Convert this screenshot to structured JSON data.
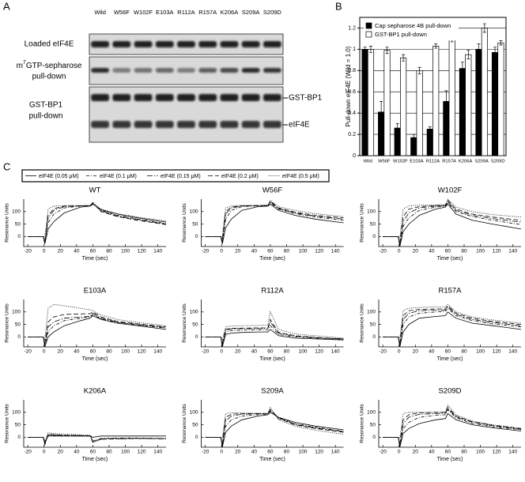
{
  "panel_labels": [
    "A",
    "B",
    "C"
  ],
  "gel": {
    "lanes": [
      "Wild",
      "W56F",
      "W102F",
      "E103A",
      "R112A",
      "R157A",
      "K206A",
      "S209A",
      "S209D"
    ],
    "row_labels": {
      "loaded": "Loaded eIF4E",
      "cap_prefix": "m",
      "cap_sup": "7",
      "cap_rest": "GTP-sepharose",
      "cap_line2": "pull-down",
      "gst_line1": "GST-BP1",
      "gst_line2": "pull-down"
    },
    "band_labels": [
      "GST-BP1",
      "eIF4E"
    ]
  },
  "spr_legend": [
    {
      "name": "eIF4E (0.05 μM)",
      "style": "solid"
    },
    {
      "name": "eIF4E (0.1 μM)",
      "style": "dash-dot"
    },
    {
      "name": "eIF4E (0.15 μM)",
      "style": "long-dash-dot"
    },
    {
      "name": "eIF4E (0.2 μM)",
      "style": "dashed"
    },
    {
      "name": "eIF4E (0.5 μM)",
      "style": "dotted"
    }
  ],
  "chart_data": [
    {
      "type": "bar",
      "y_label": "Pull-down eIF4E (Wild = 1.0)",
      "categories": [
        "Wild",
        "W56F",
        "W102F",
        "E103A",
        "R112A",
        "R157A",
        "K206A",
        "S209A",
        "S209D"
      ],
      "ylim": [
        0,
        1.3
      ],
      "yticks": [
        0,
        0.2,
        0.4,
        0.6,
        0.8,
        1,
        1.2
      ],
      "grid": true,
      "legend": "upper left",
      "series": [
        {
          "name": "Cap sepharose 4B pull-down",
          "color": "#000000",
          "values": [
            1.0,
            0.41,
            0.26,
            0.17,
            0.25,
            0.51,
            0.82,
            1.0,
            0.97
          ],
          "errors": [
            0.02,
            0.1,
            0.04,
            0.03,
            0.02,
            0.1,
            0.06,
            0.05,
            0.05
          ]
        },
        {
          "name": "GST-BP1 pull-down",
          "color": "#ffffff",
          "values": [
            1.0,
            0.99,
            0.92,
            0.8,
            1.03,
            1.1,
            0.95,
            1.2,
            1.06
          ],
          "errors": [
            0.03,
            0.03,
            0.03,
            0.03,
            0.02,
            0.03,
            0.04,
            0.04,
            0.02
          ]
        }
      ]
    },
    {
      "type": "line",
      "title": "WT",
      "x_label": "Time (sec)",
      "y_label": "Resonance Units",
      "x": [
        -20,
        -1,
        1,
        5,
        12,
        25,
        45,
        57,
        60,
        70,
        90,
        115,
        150
      ],
      "xlim": [
        -25,
        150
      ],
      "xticks": [
        -20,
        0,
        20,
        40,
        60,
        80,
        100,
        120,
        140
      ],
      "ylim": [
        -40,
        150
      ],
      "yticks": [
        0,
        50,
        100
      ],
      "series": [
        {
          "values": [
            0,
            0,
            -30,
            30,
            60,
            95,
            118,
            122,
            130,
            108,
            90,
            75,
            58
          ]
        },
        {
          "values": [
            0,
            0,
            -25,
            55,
            90,
            115,
            122,
            123,
            132,
            105,
            85,
            70,
            52
          ]
        },
        {
          "values": [
            0,
            0,
            -20,
            75,
            105,
            120,
            123,
            123,
            133,
            103,
            83,
            68,
            50
          ]
        },
        {
          "values": [
            0,
            0,
            -20,
            85,
            112,
            122,
            123,
            124,
            135,
            100,
            80,
            65,
            48
          ]
        },
        {
          "values": [
            0,
            0,
            0,
            110,
            122,
            124,
            124,
            125,
            138,
            110,
            92,
            78,
            62
          ]
        }
      ]
    },
    {
      "type": "line",
      "title": "W56F",
      "x_label": "Time (sec)",
      "y_label": "Resonance Units",
      "x": [
        -20,
        -1,
        1,
        5,
        12,
        25,
        45,
        57,
        60,
        70,
        90,
        115,
        150
      ],
      "xlim": [
        -25,
        150
      ],
      "xticks": [
        -20,
        0,
        20,
        40,
        60,
        80,
        100,
        120,
        140
      ],
      "ylim": [
        -40,
        150
      ],
      "yticks": [
        0,
        50,
        100
      ],
      "series": [
        {
          "values": [
            0,
            0,
            -30,
            35,
            70,
            105,
            120,
            122,
            130,
            105,
            85,
            70,
            55
          ]
        },
        {
          "values": [
            0,
            0,
            -25,
            70,
            105,
            120,
            123,
            123,
            135,
            110,
            92,
            78,
            65
          ]
        },
        {
          "values": [
            0,
            0,
            -20,
            90,
            115,
            122,
            123,
            124,
            140,
            112,
            95,
            82,
            70
          ]
        },
        {
          "values": [
            0,
            0,
            -15,
            100,
            118,
            123,
            124,
            124,
            142,
            115,
            98,
            85,
            75
          ]
        },
        {
          "values": [
            0,
            0,
            0,
            115,
            123,
            125,
            125,
            126,
            145,
            120,
            105,
            92,
            80
          ]
        }
      ]
    },
    {
      "type": "line",
      "title": "W102F",
      "x_label": "Time (sec)",
      "y_label": "Resonance Units",
      "x": [
        -20,
        -1,
        1,
        5,
        12,
        25,
        45,
        57,
        60,
        70,
        90,
        115,
        150
      ],
      "xlim": [
        -25,
        150
      ],
      "xticks": [
        -20,
        0,
        20,
        40,
        60,
        80,
        100,
        120,
        140
      ],
      "ylim": [
        -40,
        150
      ],
      "yticks": [
        0,
        50,
        100
      ],
      "series": [
        {
          "values": [
            0,
            0,
            -40,
            20,
            50,
            85,
            110,
            118,
            130,
            90,
            65,
            50,
            30
          ]
        },
        {
          "values": [
            0,
            0,
            -35,
            40,
            75,
            105,
            118,
            122,
            135,
            100,
            80,
            65,
            48
          ]
        },
        {
          "values": [
            0,
            0,
            -30,
            60,
            95,
            115,
            122,
            124,
            140,
            105,
            85,
            72,
            58
          ]
        },
        {
          "values": [
            0,
            0,
            -25,
            80,
            110,
            120,
            124,
            125,
            145,
            110,
            90,
            78,
            65
          ]
        },
        {
          "values": [
            0,
            0,
            -5,
            110,
            123,
            126,
            127,
            128,
            150,
            118,
            100,
            88,
            78
          ]
        }
      ]
    },
    {
      "type": "line",
      "title": "E103A",
      "x_label": "Time (sec)",
      "y_label": "Resonance Units",
      "x": [
        -20,
        -1,
        1,
        5,
        12,
        25,
        45,
        57,
        60,
        70,
        90,
        115,
        150
      ],
      "xlim": [
        -25,
        150
      ],
      "xticks": [
        -20,
        0,
        20,
        40,
        60,
        80,
        100,
        120,
        140
      ],
      "ylim": [
        -40,
        150
      ],
      "yticks": [
        0,
        50,
        100
      ],
      "series": [
        {
          "values": [
            0,
            0,
            -40,
            0,
            20,
            45,
            65,
            75,
            85,
            70,
            55,
            45,
            30
          ]
        },
        {
          "values": [
            0,
            0,
            -35,
            20,
            45,
            65,
            75,
            80,
            90,
            72,
            58,
            48,
            35
          ]
        },
        {
          "values": [
            0,
            0,
            -30,
            40,
            60,
            75,
            80,
            82,
            95,
            75,
            60,
            50,
            38
          ]
        },
        {
          "values": [
            0,
            0,
            -25,
            60,
            80,
            90,
            92,
            93,
            100,
            80,
            62,
            52,
            40
          ]
        },
        {
          "values": [
            0,
            0,
            -10,
            115,
            130,
            125,
            115,
            108,
            105,
            88,
            70,
            58,
            45
          ]
        }
      ]
    },
    {
      "type": "line",
      "title": "R112A",
      "x_label": "Time (sec)",
      "y_label": "Resonance Units",
      "x": [
        -20,
        -1,
        1,
        5,
        12,
        25,
        45,
        57,
        60,
        70,
        90,
        115,
        150
      ],
      "xlim": [
        -25,
        150
      ],
      "xticks": [
        -20,
        0,
        20,
        40,
        60,
        80,
        100,
        120,
        140
      ],
      "ylim": [
        -40,
        150
      ],
      "yticks": [
        0,
        50,
        100
      ],
      "series": [
        {
          "values": [
            0,
            0,
            -40,
            10,
            15,
            18,
            20,
            20,
            30,
            5,
            -5,
            -8,
            -12
          ]
        },
        {
          "values": [
            0,
            0,
            -35,
            20,
            25,
            27,
            28,
            28,
            45,
            10,
            0,
            -5,
            -10
          ]
        },
        {
          "values": [
            0,
            0,
            -30,
            28,
            32,
            33,
            33,
            34,
            60,
            15,
            3,
            -3,
            -8
          ]
        },
        {
          "values": [
            0,
            0,
            -25,
            30,
            34,
            35,
            36,
            36,
            70,
            18,
            5,
            -2,
            -8
          ]
        },
        {
          "values": [
            0,
            0,
            -10,
            40,
            44,
            45,
            46,
            47,
            100,
            30,
            12,
            5,
            -5
          ]
        }
      ]
    },
    {
      "type": "line",
      "title": "R157A",
      "x_label": "Time (sec)",
      "y_label": "Resonance Units",
      "x": [
        -20,
        -1,
        1,
        5,
        12,
        25,
        45,
        57,
        60,
        70,
        90,
        115,
        150
      ],
      "xlim": [
        -25,
        150
      ],
      "xticks": [
        -20,
        0,
        20,
        40,
        60,
        80,
        100,
        120,
        140
      ],
      "ylim": [
        -40,
        150
      ],
      "yticks": [
        0,
        50,
        100
      ],
      "series": [
        {
          "values": [
            0,
            0,
            -40,
            20,
            50,
            75,
            82,
            85,
            100,
            75,
            55,
            45,
            30
          ]
        },
        {
          "values": [
            0,
            0,
            -35,
            50,
            80,
            95,
            100,
            102,
            115,
            85,
            65,
            52,
            40
          ]
        },
        {
          "values": [
            0,
            0,
            -30,
            70,
            95,
            105,
            107,
            108,
            120,
            90,
            70,
            58,
            45
          ]
        },
        {
          "values": [
            0,
            0,
            -25,
            85,
            105,
            110,
            112,
            112,
            125,
            95,
            75,
            62,
            50
          ]
        },
        {
          "values": [
            0,
            0,
            -5,
            105,
            115,
            118,
            120,
            120,
            130,
            100,
            80,
            68,
            55
          ]
        }
      ]
    },
    {
      "type": "line",
      "title": "K206A",
      "x_label": "Time (sec)",
      "y_label": "Resonance Units",
      "x": [
        -20,
        -1,
        1,
        5,
        12,
        25,
        45,
        57,
        60,
        70,
        90,
        115,
        150
      ],
      "xlim": [
        -25,
        150
      ],
      "xticks": [
        -20,
        0,
        20,
        40,
        60,
        80,
        100,
        120,
        140
      ],
      "ylim": [
        -40,
        150
      ],
      "yticks": [
        0,
        50,
        100
      ],
      "series": [
        {
          "values": [
            0,
            0,
            -20,
            5,
            5,
            5,
            5,
            5,
            0,
            5,
            5,
            5,
            5
          ]
        },
        {
          "values": [
            0,
            0,
            -25,
            8,
            8,
            7,
            5,
            5,
            -15,
            -5,
            -3,
            -3,
            -5
          ]
        },
        {
          "values": [
            0,
            0,
            -30,
            10,
            9,
            8,
            6,
            5,
            -20,
            -8,
            -6,
            -5,
            -6
          ]
        },
        {
          "values": [
            0,
            0,
            -30,
            12,
            10,
            8,
            7,
            6,
            -20,
            -8,
            -6,
            -5,
            -6
          ]
        },
        {
          "values": [
            0,
            0,
            -15,
            18,
            15,
            13,
            10,
            8,
            -15,
            -5,
            -4,
            -4,
            -5
          ]
        }
      ]
    },
    {
      "type": "line",
      "title": "S209A",
      "x_label": "Time (sec)",
      "y_label": "Resonance Units",
      "x": [
        -20,
        -1,
        1,
        5,
        12,
        25,
        45,
        57,
        60,
        70,
        90,
        115,
        150
      ],
      "xlim": [
        -25,
        150
      ],
      "xticks": [
        -20,
        0,
        20,
        40,
        60,
        80,
        100,
        120,
        140
      ],
      "ylim": [
        -40,
        150
      ],
      "yticks": [
        0,
        50,
        100
      ],
      "series": [
        {
          "values": [
            0,
            0,
            -40,
            20,
            45,
            70,
            85,
            90,
            100,
            80,
            60,
            45,
            30
          ]
        },
        {
          "values": [
            0,
            0,
            -35,
            45,
            70,
            85,
            90,
            92,
            105,
            80,
            55,
            40,
            25
          ]
        },
        {
          "values": [
            0,
            0,
            -30,
            65,
            85,
            92,
            94,
            95,
            110,
            78,
            52,
            38,
            22
          ]
        },
        {
          "values": [
            0,
            0,
            -25,
            80,
            92,
            95,
            95,
            96,
            112,
            75,
            50,
            35,
            20
          ]
        },
        {
          "values": [
            0,
            0,
            -5,
            95,
            98,
            97,
            96,
            95,
            120,
            70,
            45,
            28,
            12
          ]
        }
      ]
    },
    {
      "type": "line",
      "title": "S209D",
      "x_label": "Time (sec)",
      "y_label": "Resonance Units",
      "x": [
        -20,
        -1,
        1,
        5,
        12,
        25,
        45,
        57,
        60,
        70,
        90,
        115,
        150
      ],
      "xlim": [
        -25,
        150
      ],
      "xticks": [
        -20,
        0,
        20,
        40,
        60,
        80,
        100,
        120,
        140
      ],
      "ylim": [
        -40,
        150
      ],
      "yticks": [
        0,
        50,
        100
      ],
      "series": [
        {
          "values": [
            0,
            0,
            -40,
            15,
            35,
            55,
            70,
            75,
            95,
            70,
            50,
            38,
            25
          ]
        },
        {
          "values": [
            0,
            0,
            -35,
            35,
            60,
            80,
            88,
            90,
            110,
            78,
            55,
            42,
            30
          ]
        },
        {
          "values": [
            0,
            0,
            -30,
            55,
            80,
            92,
            95,
            96,
            115,
            82,
            60,
            46,
            32
          ]
        },
        {
          "values": [
            0,
            0,
            -25,
            70,
            90,
            98,
            100,
            100,
            120,
            85,
            62,
            48,
            35
          ]
        },
        {
          "values": [
            0,
            0,
            -5,
            95,
            100,
            100,
            100,
            100,
            130,
            90,
            65,
            50,
            36
          ]
        }
      ]
    }
  ]
}
